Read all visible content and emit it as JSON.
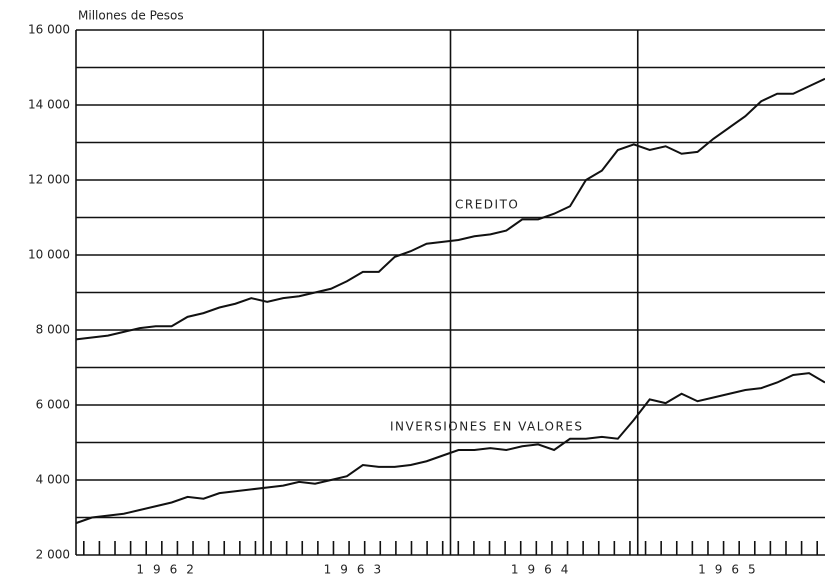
{
  "chart_data": {
    "type": "line",
    "ylabel": "Millones de Pesos",
    "categories": [
      null,
      null,
      null,
      null,
      null,
      null,
      null,
      null,
      null,
      null,
      null,
      null,
      null,
      null,
      null,
      null,
      null,
      null,
      null,
      null,
      null,
      null,
      null,
      null,
      null,
      null,
      null,
      null,
      null,
      null,
      null,
      null,
      null,
      null,
      null,
      null,
      null,
      null,
      null,
      null,
      null,
      null,
      null,
      null,
      null,
      null,
      null,
      null
    ],
    "groups": [
      "1962",
      "1963",
      "1964",
      "1965"
    ],
    "series": [
      {
        "name": "CREDITO",
        "color": "#111111",
        "values": [
          7750,
          7800,
          7850,
          7950,
          8050,
          8100,
          8100,
          8350,
          8450,
          8600,
          8700,
          8850,
          8750,
          8850,
          8900,
          9000,
          9100,
          9300,
          9550,
          9550,
          9950,
          10100,
          10300,
          10350,
          10400,
          10500,
          10550,
          10650,
          10950,
          10950,
          11100,
          11300,
          12000,
          12250,
          12800,
          12950,
          12800,
          12900,
          12700,
          12750,
          13100,
          13400,
          13700,
          14100,
          14300,
          14300,
          14500,
          14700
        ]
      },
      {
        "name": "INVERSIONES EN VALORES",
        "color": "#111111",
        "values": [
          2850,
          3000,
          3050,
          3100,
          3200,
          3300,
          3400,
          3550,
          3500,
          3650,
          3700,
          3750,
          3800,
          3850,
          3950,
          3900,
          4000,
          4100,
          4400,
          4350,
          4350,
          4400,
          4500,
          4650,
          4800,
          4800,
          4850,
          4800,
          4900,
          4950,
          4800,
          5100,
          5100,
          5150,
          5100,
          5600,
          6150,
          6050,
          6300,
          6100,
          6200,
          6300,
          6400,
          6450,
          6600,
          6800,
          6850,
          6600
        ]
      }
    ],
    "ylim": [
      2000,
      16000
    ],
    "yticks": [
      {
        "value": 2000,
        "label": "2 000"
      },
      {
        "value": 4000,
        "label": "4 000"
      },
      {
        "value": 6000,
        "label": "6 000"
      },
      {
        "value": 8000,
        "label": "8 000"
      },
      {
        "value": 10000,
        "label": "10 000"
      },
      {
        "value": 12000,
        "label": "12 000"
      },
      {
        "value": 14000,
        "label": "14 000"
      },
      {
        "value": 16000,
        "label": "16 000"
      }
    ],
    "yminorticks": [
      3000,
      5000,
      7000,
      9000,
      11000,
      13000,
      15000
    ],
    "grid": true
  }
}
